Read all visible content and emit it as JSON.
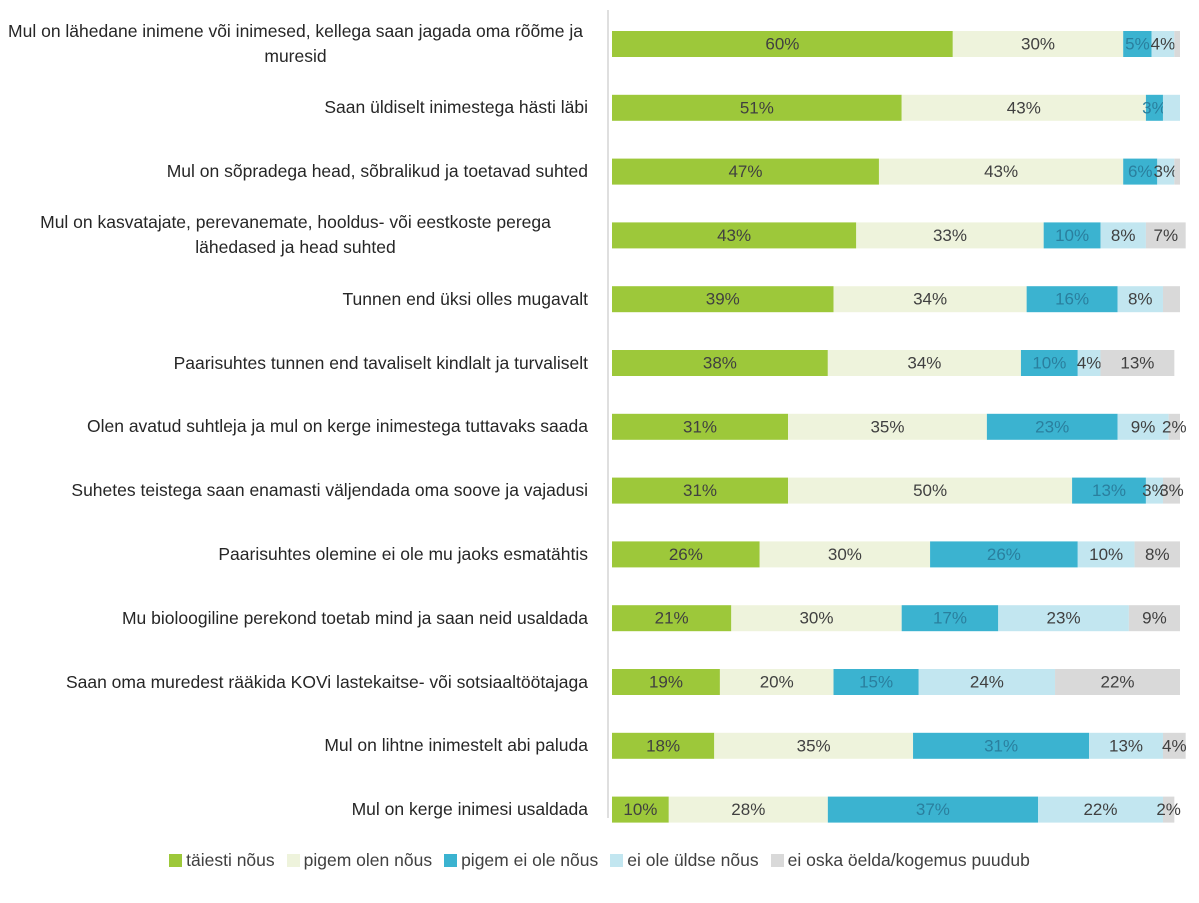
{
  "chart_data": {
    "type": "stacked_barh",
    "categories": [
      "Mul on lähedane inimene või inimesed, kellega saan jagada oma rõõme ja muresid",
      "Saan üldiselt inimestega hästi läbi",
      "Mul on sõpradega head, sõbralikud ja toetavad suhted",
      "Mul on kasvatajate, perevanemate, hooldus- või eestkoste perega lähedased ja head suhted",
      "Tunnen end üksi olles mugavalt",
      "Paarisuhtes tunnen end tavaliselt kindlalt ja turvaliselt",
      "Olen avatud suhtleja ja mul on kerge inimestega tuttavaks saada",
      "Suhetes teistega saan enamasti väljendada oma soove ja vajadusi",
      "Paarisuhtes olemine ei ole mu jaoks esmatähtis",
      "Mu bioloogiline perekond toetab mind ja saan neid usaldada",
      "Saan oma muredest rääkida KOVi lastekaitse- või sotsiaaltöötajaga",
      "Mul on lihtne inimestelt abi paluda",
      "Mul on kerge inimesi usaldada"
    ],
    "xlim": [
      0,
      100
    ],
    "series": [
      {
        "name": "täiesti nõus",
        "color": "#9dc83a",
        "label_color": "#404040",
        "values": [
          60,
          51,
          47,
          43,
          39,
          38,
          31,
          31,
          26,
          21,
          19,
          18,
          10
        ],
        "value_labels": [
          "60%",
          "51%",
          "47%",
          "43%",
          "39%",
          "38%",
          "31%",
          "31%",
          "26%",
          "21%",
          "19%",
          "18%",
          "10%"
        ]
      },
      {
        "name": "pigem olen nõus",
        "color": "#eef3dc",
        "label_color": "#404040",
        "values": [
          30,
          43,
          43,
          33,
          34,
          34,
          35,
          50,
          30,
          30,
          20,
          35,
          28
        ],
        "value_labels": [
          "30%",
          "43%",
          "43%",
          "33%",
          "34%",
          "34%",
          "35%",
          "50%",
          "30%",
          "30%",
          "20%",
          "35%",
          "28%"
        ]
      },
      {
        "name": "pigem ei ole nõus",
        "color": "#3bb3d0",
        "label_color": "#2a7f9e",
        "values": [
          5,
          3,
          6,
          10,
          16,
          10,
          23,
          13,
          26,
          17,
          15,
          31,
          37
        ],
        "value_labels": [
          "5%",
          "3%",
          "6%",
          "10%",
          "16%",
          "10%",
          "23%",
          "13%",
          "26%",
          "17%",
          "15%",
          "31%",
          "37%"
        ]
      },
      {
        "name": "ei ole üldse nõus",
        "color": "#c2e6f0",
        "label_color": "#404040",
        "values": [
          4,
          3,
          3,
          8,
          8,
          4,
          9,
          3,
          10,
          23,
          24,
          13,
          22
        ],
        "value_labels": [
          "4%",
          null,
          "3%",
          "8%",
          "8%",
          "4%",
          "9%",
          "3%",
          "10%",
          "23%",
          "24%",
          "13%",
          "22%"
        ]
      },
      {
        "name": "ei oska öelda/kogemus puudub",
        "color": "#d9d9d9",
        "label_color": "#404040",
        "values": [
          1,
          0,
          1,
          7,
          3,
          13,
          2,
          3,
          8,
          9,
          22,
          4,
          2
        ],
        "value_labels": [
          null,
          null,
          null,
          "7%",
          null,
          "13%",
          "2%",
          "3%",
          "8%",
          "9%",
          "22%",
          "4%",
          "2%"
        ]
      }
    ]
  }
}
